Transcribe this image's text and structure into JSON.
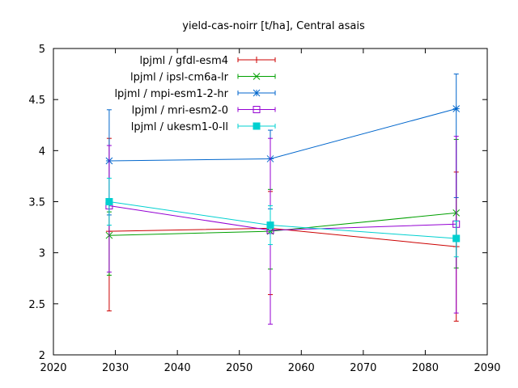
{
  "chart_data": {
    "type": "line",
    "title": "yield-cas-noirr [t/ha], Central asais",
    "xlabel": "",
    "ylabel": "",
    "xlim": [
      2020,
      2090
    ],
    "ylim": [
      2,
      5
    ],
    "x_ticks": [
      "2020",
      "2030",
      "2040",
      "2050",
      "2060",
      "2070",
      "2080",
      "2090"
    ],
    "y_ticks": [
      "2",
      "2.5",
      "3",
      "3.5",
      "4",
      "4.5",
      "5"
    ],
    "grid": false,
    "legend_position": "top-left",
    "x": [
      2029,
      2055,
      2085
    ],
    "series": [
      {
        "name": "lpjml / gfdl-esm4",
        "color": "#cc0000",
        "marker": "plus",
        "values": [
          3.21,
          3.24,
          3.06
        ],
        "err_low": [
          2.43,
          2.59,
          2.33
        ],
        "err_high": [
          4.12,
          3.6,
          3.79
        ]
      },
      {
        "name": "lpjml / ipsl-cm6a-lr",
        "color": "#00a000",
        "marker": "cross",
        "values": [
          3.17,
          3.21,
          3.39
        ],
        "err_low": [
          2.78,
          2.84,
          2.85
        ],
        "err_high": [
          3.4,
          3.62,
          4.11
        ]
      },
      {
        "name": "lpjml / mpi-esm1-2-hr",
        "color": "#0066cc",
        "marker": "star",
        "values": [
          3.9,
          3.92,
          4.41
        ],
        "err_low": [
          3.37,
          3.43,
          3.54
        ],
        "err_high": [
          4.4,
          4.2,
          4.75
        ]
      },
      {
        "name": "lpjml / mri-esm2-0",
        "color": "#9400d3",
        "marker": "open-square",
        "values": [
          3.46,
          3.22,
          3.28
        ],
        "err_low": [
          2.81,
          2.3,
          2.41
        ],
        "err_high": [
          4.05,
          4.12,
          4.14
        ]
      },
      {
        "name": "lpjml / ukesm1-0-ll",
        "color": "#00d0d0",
        "marker": "filled-square",
        "values": [
          3.5,
          3.27,
          3.14
        ],
        "err_low": [
          3.27,
          3.08,
          2.96
        ],
        "err_high": [
          3.73,
          3.46,
          3.31
        ]
      }
    ]
  }
}
